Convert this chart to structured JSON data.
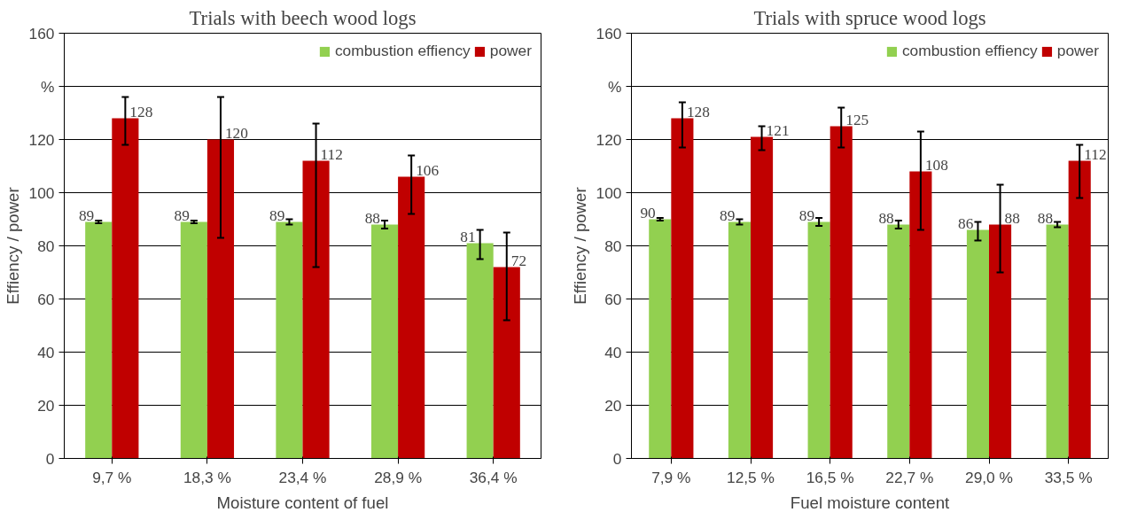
{
  "chart_data": [
    {
      "type": "bar",
      "title": "Trials with beech wood logs",
      "xlabel": "Moisture content of fuel",
      "ylabel": "Effiency / power",
      "categories": [
        "9,7 %",
        "18,3 %",
        "23,4 %",
        "28,9 %",
        "36,4 %"
      ],
      "series": [
        {
          "name": "combustion effiency",
          "color": "#92d050",
          "values": [
            89,
            89,
            89,
            88,
            81
          ],
          "errors": [
            0.5,
            0.5,
            1,
            1.5,
            [
              75,
              86
            ]
          ]
        },
        {
          "name": "power",
          "color": "#c00000",
          "values": [
            128,
            120,
            112,
            106,
            72
          ],
          "errors": [
            [
              118,
              136
            ],
            [
              83,
              136
            ],
            [
              72,
              126
            ],
            [
              92,
              114
            ],
            [
              52,
              85
            ]
          ]
        }
      ],
      "ylim": [
        0,
        160
      ],
      "yticks": [
        0,
        20,
        40,
        60,
        80,
        100,
        120,
        {
          "value": 140,
          "label": "%"
        },
        160
      ],
      "grid": "y",
      "legend": "top right",
      "data_labels": true
    },
    {
      "type": "bar",
      "title": "Trials with spruce wood logs",
      "xlabel": "Fuel moisture content",
      "ylabel": "Effiency / power",
      "categories": [
        "7,9 %",
        "12,5 %",
        "16,5 %",
        "22,7 %",
        "29,0 %",
        "33,5 %"
      ],
      "series": [
        {
          "name": "combustion effiency",
          "color": "#92d050",
          "values": [
            90,
            89,
            89,
            88,
            86,
            88
          ],
          "errors": [
            0.5,
            1,
            1.5,
            1.5,
            [
              82,
              89
            ],
            1
          ]
        },
        {
          "name": "power",
          "color": "#c00000",
          "values": [
            128,
            121,
            125,
            108,
            88,
            112
          ],
          "errors": [
            [
              117,
              134
            ],
            [
              116,
              125
            ],
            [
              117,
              132
            ],
            [
              86,
              123
            ],
            [
              70,
              103
            ],
            [
              98,
              118
            ]
          ]
        }
      ],
      "ylim": [
        0,
        160
      ],
      "yticks": [
        0,
        20,
        40,
        60,
        80,
        100,
        120,
        {
          "value": 140,
          "label": "%"
        },
        160
      ],
      "grid": "y",
      "legend": "top right",
      "data_labels": true
    }
  ]
}
